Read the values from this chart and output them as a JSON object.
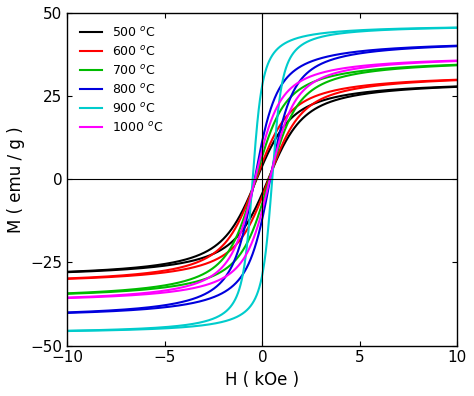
{
  "series": [
    {
      "label": "500 $^o$C",
      "color": "#000000",
      "Ms": 30.0,
      "Hc": 0.3,
      "k": 1.4
    },
    {
      "label": "600 $^o$C",
      "color": "#ff0000",
      "Ms": 32.0,
      "Hc": 0.32,
      "k": 1.5
    },
    {
      "label": "700 $^o$C",
      "color": "#00bb00",
      "Ms": 36.5,
      "Hc": 0.35,
      "k": 1.7
    },
    {
      "label": "800 $^o$C",
      "color": "#0000dd",
      "Ms": 42.0,
      "Hc": 0.4,
      "k": 2.2
    },
    {
      "label": "900 $^o$C",
      "color": "#00cccc",
      "Ms": 46.5,
      "Hc": 0.5,
      "k": 5.0
    },
    {
      "label": "1000 $^o$C",
      "color": "#ff00ff",
      "Ms": 37.5,
      "Hc": 0.38,
      "k": 2.0
    }
  ],
  "xlim": [
    -10,
    10
  ],
  "ylim": [
    -50,
    50
  ],
  "xlabel": "H ( kOe )",
  "ylabel": "M ( emu / g )",
  "xticks": [
    -10,
    -5,
    0,
    5,
    10
  ],
  "yticks": [
    -50,
    -25,
    0,
    25,
    50
  ],
  "linewidth": 1.5,
  "background_color": "#ffffff"
}
